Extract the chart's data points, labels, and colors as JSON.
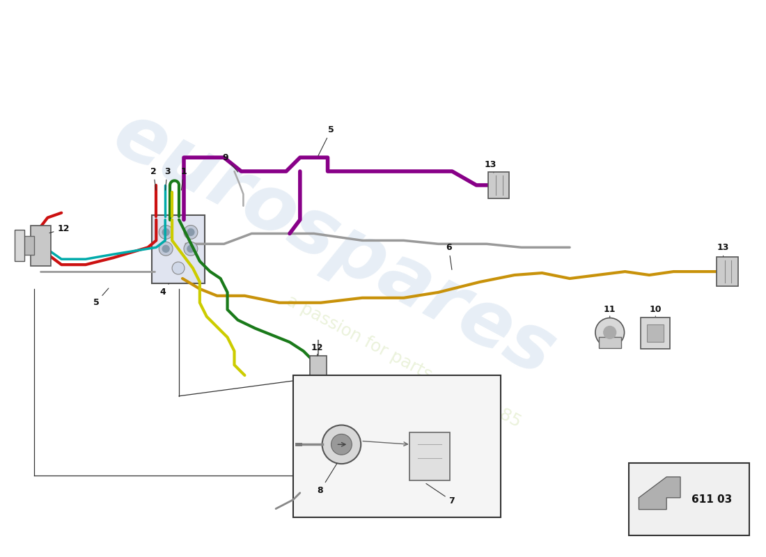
{
  "bg_color": "#ffffff",
  "logo_text": "611 03",
  "purple": "#880088",
  "gray": "#999999",
  "gold": "#C8920A",
  "green": "#1A7A1A",
  "red": "#CC1111",
  "cyan": "#00AAAA",
  "yellow": "#CCCC00",
  "dark": "#333333",
  "lw_main": 3.0
}
